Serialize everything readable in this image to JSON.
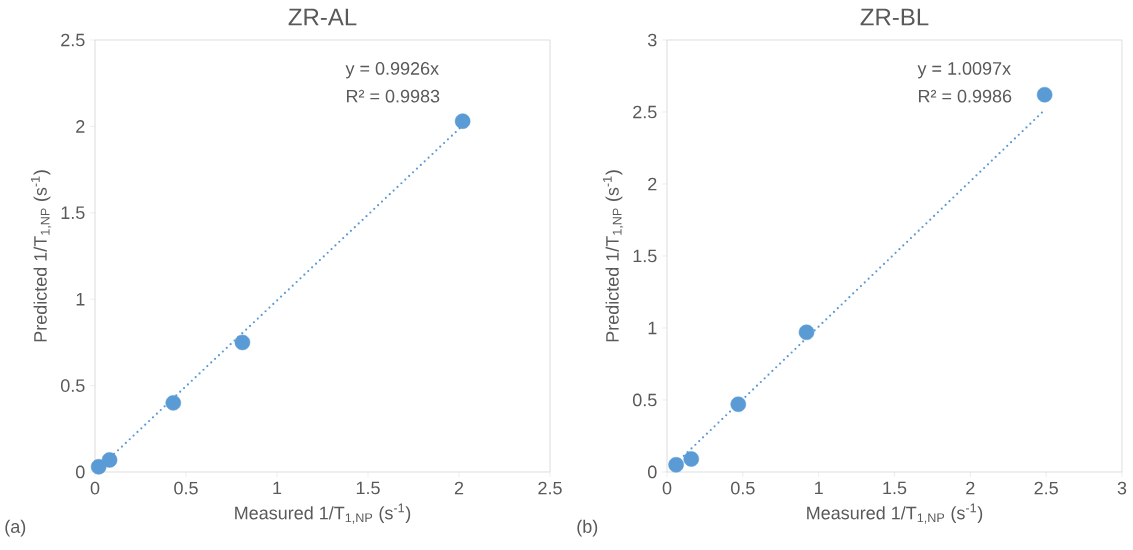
{
  "chart_data": [
    {
      "type": "scatter",
      "title": "ZR-AL",
      "xlabel": "Measured 1/T$_{1,NP}$  (s$^{-1}$)",
      "ylabel": "Predicted 1/T$_{1,NP}$ (s$^{-1}$)",
      "marker": "circle",
      "xlim": [
        0,
        2.5
      ],
      "ylim": [
        0,
        2.5
      ],
      "xticks": [
        0,
        0.5,
        1,
        1.5,
        2,
        2.5
      ],
      "yticks": [
        0,
        0.5,
        1,
        1.5,
        2,
        2.5
      ],
      "annotations": [
        "y = 0.9926x",
        "R² = 0.9983",
        "(a)"
      ],
      "series": [
        {
          "color": "#5b9bd5",
          "x": [
            0.02,
            0.08,
            0.43,
            0.81,
            2.02
          ],
          "values": [
            0.03,
            0.07,
            0.4,
            0.75,
            2.03
          ]
        },
        {
          "type": "line",
          "color": "#5b9bd5",
          "line_style": "dotted",
          "marker": "none",
          "x": [
            0.02,
            2.02
          ],
          "values": [
            0.02,
            2.005
          ]
        }
      ]
    },
    {
      "type": "scatter",
      "title": "ZR-BL",
      "xlabel": "Measured 1/T$_{1,NP}$  (s$^{-1}$)",
      "ylabel": "Predicted 1/T$_{1,NP}$  (s$^{-1}$)",
      "marker": "circle",
      "xlim": [
        0,
        3
      ],
      "ylim": [
        0,
        3
      ],
      "xticks": [
        0,
        0.5,
        1,
        1.5,
        2,
        2.5,
        3
      ],
      "yticks": [
        0,
        0.5,
        1,
        1.5,
        2,
        2.5,
        3
      ],
      "annotations": [
        "y = 1.0097x",
        "R² = 0.9986",
        "(b)"
      ],
      "series": [
        {
          "color": "#5b9bd5",
          "x": [
            0.06,
            0.16,
            0.47,
            0.92,
            2.49
          ],
          "values": [
            0.05,
            0.09,
            0.47,
            0.97,
            2.62
          ]
        },
        {
          "type": "line",
          "color": "#5b9bd5",
          "line_style": "dotted",
          "marker": "none",
          "x": [
            0.06,
            2.49
          ],
          "values": [
            0.061,
            2.514
          ]
        }
      ]
    }
  ]
}
